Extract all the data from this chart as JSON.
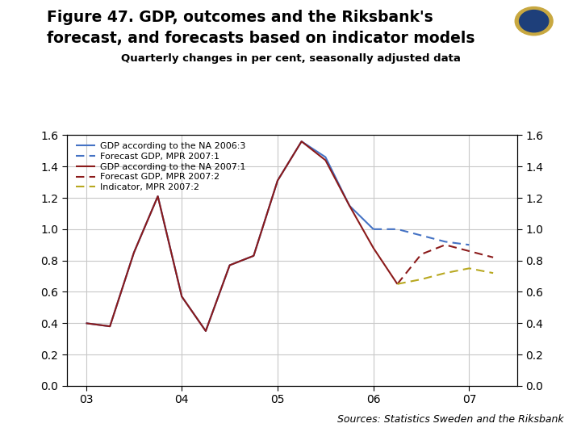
{
  "title_line1": "Figure 47. GDP, outcomes and the Riksbank's",
  "title_line2": "forecast, and forecasts based on indicator models",
  "subtitle": "Quarterly changes in per cent, seasonally adjusted data",
  "source": "Sources: Statistics Sweden and the Riksbank",
  "ylim": [
    0.0,
    1.6
  ],
  "yticks": [
    0.0,
    0.2,
    0.4,
    0.6,
    0.8,
    1.0,
    1.2,
    1.4,
    1.6
  ],
  "xtick_labels": [
    "03",
    "04",
    "05",
    "06",
    "07"
  ],
  "background_color": "#ffffff",
  "footer_color": "#1e3f7a",
  "series": {
    "gdp_na_2006_3": {
      "label": "GDP according to the NA 2006:3",
      "color": "#4472c4",
      "linestyle": "solid",
      "linewidth": 1.5,
      "x": [
        0,
        1,
        2,
        3,
        4,
        5,
        6,
        7,
        8,
        9,
        10,
        11,
        12
      ],
      "y": [
        0.4,
        0.38,
        0.85,
        1.21,
        0.57,
        0.35,
        0.77,
        0.83,
        1.31,
        1.56,
        1.46,
        1.15,
        1.0
      ]
    },
    "forecast_gdp_mpr_2007_1": {
      "label": "Forecast GDP, MPR 2007:1",
      "color": "#4472c4",
      "linestyle": "dashed",
      "linewidth": 1.5,
      "x": [
        12,
        13,
        14,
        15,
        16
      ],
      "y": [
        1.0,
        1.0,
        0.96,
        0.92,
        0.9
      ]
    },
    "gdp_na_2007_1": {
      "label": "GDP according to the NA 2007:1",
      "color": "#8b1a1a",
      "linestyle": "solid",
      "linewidth": 1.5,
      "x": [
        0,
        1,
        2,
        3,
        4,
        5,
        6,
        7,
        8,
        9,
        10,
        11,
        12,
        13
      ],
      "y": [
        0.4,
        0.38,
        0.85,
        1.21,
        0.57,
        0.35,
        0.77,
        0.83,
        1.31,
        1.56,
        1.44,
        1.15,
        0.88,
        0.65
      ]
    },
    "forecast_gdp_mpr_2007_2": {
      "label": "Forecast GDP, MPR 2007:2",
      "color": "#8b1a1a",
      "linestyle": "dashed",
      "linewidth": 1.5,
      "x": [
        13,
        14,
        15,
        16,
        17
      ],
      "y": [
        0.65,
        0.84,
        0.9,
        0.86,
        0.82
      ]
    },
    "indicator_mpr_2007_2": {
      "label": "Indicator, MPR 2007:2",
      "color": "#b8a820",
      "linestyle": "dashed",
      "linewidth": 1.5,
      "x": [
        13,
        14,
        15,
        16,
        17
      ],
      "y": [
        0.65,
        0.68,
        0.72,
        0.75,
        0.72
      ]
    }
  }
}
